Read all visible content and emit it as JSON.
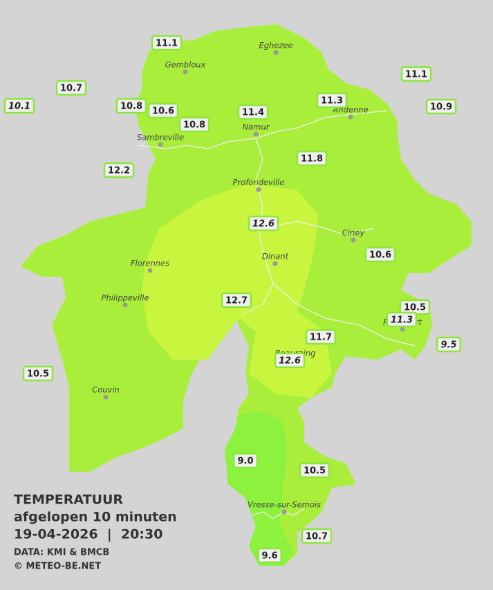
{
  "header": {
    "title": "TEMPERATUUR",
    "subtitle": "afgelopen 10 minuten",
    "datetime": "19-04-2026  |  20:30",
    "source": "DATA: KMI & BMCB",
    "copyright": "© METEO-BE.NET"
  },
  "towns": [
    "Eghezee",
    "Gembloux",
    "Andenne",
    "Namur",
    "Sambreville",
    "Profondeville",
    "Ciney",
    "Dinant",
    "Florennes",
    "Philippeville",
    "Rochefort",
    "Beauraing",
    "Couvin",
    "Vresse-sur-Semois"
  ],
  "stations": [
    {
      "label": "11.1",
      "italic": false
    },
    {
      "label": "10.7",
      "italic": false
    },
    {
      "label": "10.1",
      "italic": true
    },
    {
      "label": "10.8",
      "italic": false
    },
    {
      "label": "10.6",
      "italic": false
    },
    {
      "label": "10.8",
      "italic": false
    },
    {
      "label": "11.4",
      "italic": false
    },
    {
      "label": "11.3",
      "italic": false
    },
    {
      "label": "11.1",
      "italic": false
    },
    {
      "label": "10.9",
      "italic": false
    },
    {
      "label": "12.2",
      "italic": false
    },
    {
      "label": "11.8",
      "italic": false
    },
    {
      "label": "12.6",
      "italic": true
    },
    {
      "label": "10.6",
      "italic": false
    },
    {
      "label": "12.7",
      "italic": false
    },
    {
      "label": "10.5",
      "italic": false
    },
    {
      "label": "11.3",
      "italic": true
    },
    {
      "label": "11.7",
      "italic": false
    },
    {
      "label": "9.5",
      "italic": true
    },
    {
      "label": "12.6",
      "italic": true
    },
    {
      "label": "10.5",
      "italic": false
    },
    {
      "label": "9.0",
      "italic": false
    },
    {
      "label": "10.5",
      "italic": false
    },
    {
      "label": "10.7",
      "italic": false
    },
    {
      "label": "9.6",
      "italic": false
    }
  ]
}
